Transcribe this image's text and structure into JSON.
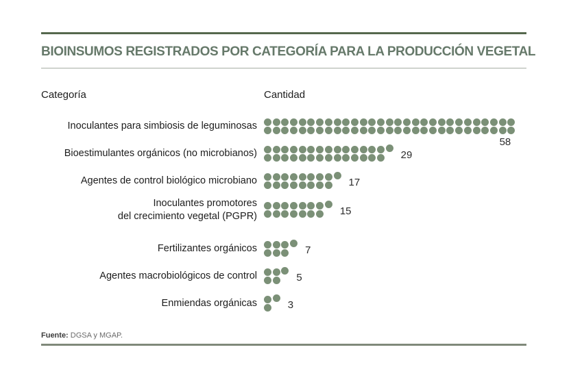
{
  "title": "BIOINSUMOS REGISTRADOS POR CATEGORÍA PARA LA PRODUCCIÓN VEGETAL",
  "columns": {
    "category": "Categoría",
    "quantity": "Cantidad"
  },
  "footer": {
    "source_label": "Fuente:",
    "source_text": "DGSA y MGAP."
  },
  "colors": {
    "dot": "#7b9077",
    "title": "#66796a",
    "top_rule": "#55684d",
    "title_rule": "#a6ada3",
    "bottom_rule": "#80897a",
    "label_text": "#1c1c1c",
    "value_text": "#2c2c2c"
  },
  "chart_data": {
    "type": "bar",
    "variant": "pictogram-dot-rows",
    "title": "BIOINSUMOS REGISTRADOS POR CATEGORÍA PARA LA PRODUCCIÓN VEGETAL",
    "xlabel": "Cantidad",
    "ylabel": "Categoría",
    "legend": false,
    "grid": false,
    "categories": [
      "Inoculantes para simbiosis de leguminosas",
      "Bioestimulantes orgánicos (no microbianos)",
      "Agentes de control biológico microbiano",
      "Inoculantes promotores del crecimiento vegetal (PGPR)",
      "Fertilizantes orgánicos",
      "Agentes macrobiológicos de control",
      "Enmiendas orgánicas"
    ],
    "values": [
      58,
      29,
      17,
      15,
      7,
      5,
      3
    ],
    "value_labels": [
      "58",
      "29",
      "17",
      "15",
      "7",
      "5",
      "3"
    ],
    "dot_layout": "each value drawn as dots stacked in two lines: top line = ceil(n/2), bottom line = floor(n/2); one dot = 1 registro",
    "source": "Fuente: DGSA y MGAP."
  },
  "rows": [
    {
      "label_lines": [
        "Inoculantes para simbiosis de leguminosas"
      ],
      "value": 58,
      "value_position": "below"
    },
    {
      "label_lines": [
        "Bioestimulantes orgánicos (no microbianos)"
      ],
      "value": 29,
      "value_position": "right"
    },
    {
      "label_lines": [
        "Agentes de control biológico microbiano"
      ],
      "value": 17,
      "value_position": "right"
    },
    {
      "label_lines": [
        "Inoculantes promotores",
        "del crecimiento vegetal (PGPR)"
      ],
      "value": 15,
      "value_position": "right"
    },
    {
      "label_lines": [
        "Fertilizantes orgánicos"
      ],
      "value": 7,
      "value_position": "right"
    },
    {
      "label_lines": [
        "Agentes macrobiológicos de control"
      ],
      "value": 5,
      "value_position": "right"
    },
    {
      "label_lines": [
        "Enmiendas orgánicas"
      ],
      "value": 3,
      "value_position": "right"
    }
  ]
}
